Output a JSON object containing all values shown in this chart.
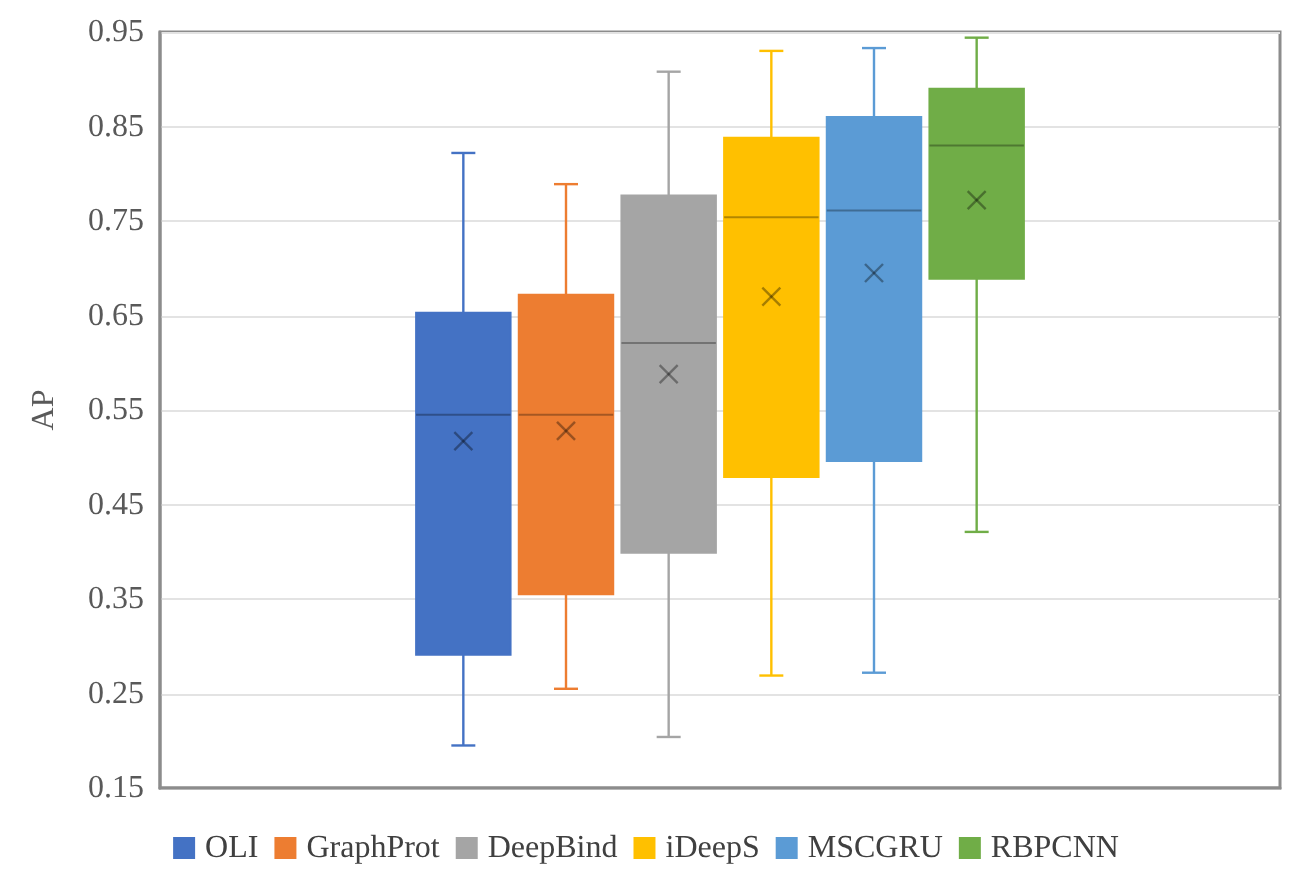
{
  "chart_data": {
    "type": "box",
    "ylabel": "AP",
    "categories": [
      null
    ],
    "ylim": [
      0.15,
      0.95
    ],
    "yticks": [
      0.15,
      0.25,
      0.35,
      0.45,
      0.55,
      0.65,
      0.75,
      0.85,
      0.95
    ],
    "grid": "y",
    "legend": "bottom",
    "series": [
      {
        "name": "OLI",
        "color": "#4472c4",
        "boxes": [
          {
            "low": 0.195,
            "q1": 0.291,
            "median": 0.545,
            "q3": 0.653,
            "high": 0.822,
            "mean": 0.517
          }
        ]
      },
      {
        "name": "GraphProt",
        "color": "#ed7d31",
        "boxes": [
          {
            "low": 0.255,
            "q1": 0.355,
            "median": 0.545,
            "q3": 0.672,
            "high": 0.789,
            "mean": 0.528
          }
        ]
      },
      {
        "name": "DeepBind",
        "color": "#a5a5a5",
        "boxes": [
          {
            "low": 0.204,
            "q1": 0.399,
            "median": 0.621,
            "q3": 0.777,
            "high": 0.908,
            "mean": 0.588
          }
        ]
      },
      {
        "name": "iDeepS",
        "color": "#ffc000",
        "boxes": [
          {
            "low": 0.269,
            "q1": 0.479,
            "median": 0.754,
            "q3": 0.838,
            "high": 0.93,
            "mean": 0.67
          }
        ]
      },
      {
        "name": "MSCGRU",
        "color": "#5b9bd5",
        "boxes": [
          {
            "low": 0.272,
            "q1": 0.496,
            "median": 0.761,
            "q3": 0.86,
            "high": 0.933,
            "mean": 0.695
          }
        ]
      },
      {
        "name": "RBPCNN",
        "color": "#70ad47",
        "boxes": [
          {
            "low": 0.421,
            "q1": 0.689,
            "median": 0.83,
            "q3": 0.89,
            "high": 0.944,
            "mean": 0.772
          }
        ]
      }
    ]
  }
}
